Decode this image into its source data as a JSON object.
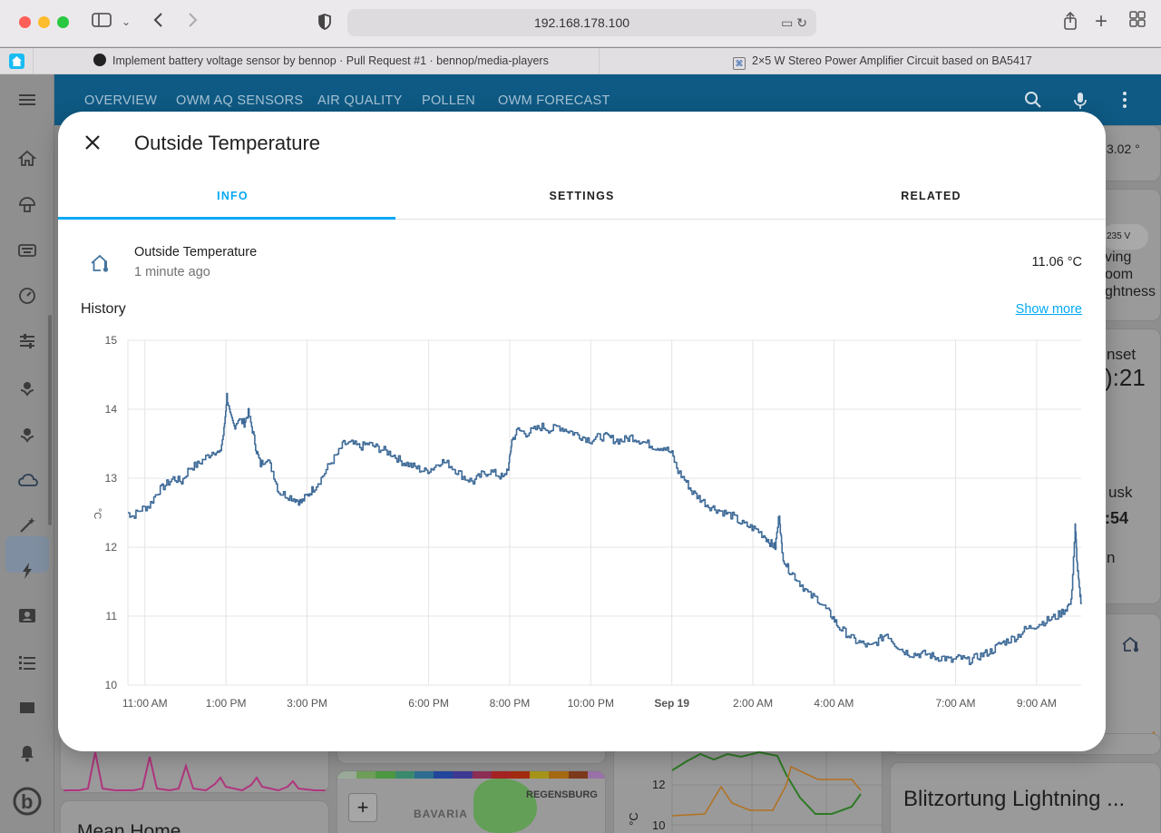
{
  "browser": {
    "url": "192.168.178.100",
    "tabs": [
      {
        "title": "Implement battery voltage sensor by bennop · Pull Request #1 · bennop/media-players",
        "icon": "github-icon"
      },
      {
        "title": "2×5 W Stereo Power Amplifier Circuit based on BA5417",
        "icon": "site-icon"
      }
    ]
  },
  "header": {
    "tabs": [
      "OVERVIEW",
      "OWM AQ SENSORS",
      "AIR QUALITY",
      "POLLEN",
      "OWM FORECAST"
    ],
    "icons": [
      "search-icon",
      "microphone-icon",
      "more-vert-icon"
    ]
  },
  "background": {
    "snippets": [
      "3.02 °",
      "235 V",
      "ving",
      "oom",
      "ghtness",
      "nset",
      "):21",
      "usk",
      ":54",
      "n",
      "BAVARIA",
      "REGENSBURG",
      "12",
      "10",
      "°C",
      "Blitzortung Lightning ...",
      "Mean Home",
      "+"
    ]
  },
  "dialog": {
    "title": "Outside Temperature",
    "tabs": [
      {
        "label": "INFO",
        "active": true
      },
      {
        "label": "SETTINGS",
        "active": false
      },
      {
        "label": "RELATED",
        "active": false
      }
    ],
    "entity": {
      "name": "Outside Temperature",
      "last_changed": "1 minute ago",
      "state": "11.06 °C"
    },
    "history_label": "History",
    "show_more": "Show more"
  },
  "chart_data": {
    "type": "line",
    "title": "",
    "ylabel": "°C",
    "xlabel": "",
    "ylim": [
      10,
      15
    ],
    "yticks": [
      10,
      11,
      12,
      13,
      14,
      15
    ],
    "xlim_hours": [
      -0.42,
      23.1
    ],
    "xticks": [
      {
        "label": "11:00 AM",
        "h": 0
      },
      {
        "label": "1:00 PM",
        "h": 2
      },
      {
        "label": "3:00 PM",
        "h": 4
      },
      {
        "label": "6:00 PM",
        "h": 7
      },
      {
        "label": "8:00 PM",
        "h": 9
      },
      {
        "label": "10:00 PM",
        "h": 11
      },
      {
        "label": "Sep 19",
        "h": 13,
        "bold": true
      },
      {
        "label": "2:00 AM",
        "h": 15
      },
      {
        "label": "4:00 AM",
        "h": 17
      },
      {
        "label": "7:00 AM",
        "h": 20
      },
      {
        "label": "9:00 AM",
        "h": 22
      }
    ],
    "series": [
      {
        "color": "#3f6b98",
        "points": [
          [
            -0.42,
            12.5
          ],
          [
            -0.3,
            12.45
          ],
          [
            -0.1,
            12.55
          ],
          [
            0.1,
            12.6
          ],
          [
            0.3,
            12.8
          ],
          [
            0.5,
            12.9
          ],
          [
            0.7,
            13.0
          ],
          [
            0.9,
            12.95
          ],
          [
            1.1,
            13.15
          ],
          [
            1.3,
            13.2
          ],
          [
            1.5,
            13.3
          ],
          [
            1.7,
            13.4
          ],
          [
            1.85,
            13.35
          ],
          [
            1.95,
            13.7
          ],
          [
            2.02,
            14.2
          ],
          [
            2.1,
            13.9
          ],
          [
            2.2,
            13.75
          ],
          [
            2.3,
            13.85
          ],
          [
            2.45,
            13.8
          ],
          [
            2.55,
            13.95
          ],
          [
            2.65,
            13.7
          ],
          [
            2.75,
            13.4
          ],
          [
            2.85,
            13.2
          ],
          [
            3.0,
            13.3
          ],
          [
            3.15,
            13.1
          ],
          [
            3.3,
            12.8
          ],
          [
            3.5,
            12.75
          ],
          [
            3.7,
            12.7
          ],
          [
            3.85,
            12.65
          ],
          [
            4.0,
            12.75
          ],
          [
            4.15,
            12.85
          ],
          [
            4.35,
            13.0
          ],
          [
            4.55,
            13.2
          ],
          [
            4.75,
            13.35
          ],
          [
            4.9,
            13.5
          ],
          [
            5.1,
            13.5
          ],
          [
            5.3,
            13.45
          ],
          [
            5.5,
            13.5
          ],
          [
            5.7,
            13.45
          ],
          [
            5.9,
            13.4
          ],
          [
            6.1,
            13.35
          ],
          [
            6.3,
            13.25
          ],
          [
            6.5,
            13.2
          ],
          [
            6.7,
            13.15
          ],
          [
            6.9,
            13.1
          ],
          [
            7.1,
            13.15
          ],
          [
            7.3,
            13.25
          ],
          [
            7.5,
            13.2
          ],
          [
            7.7,
            13.1
          ],
          [
            7.9,
            13.0
          ],
          [
            8.1,
            12.95
          ],
          [
            8.3,
            13.05
          ],
          [
            8.5,
            13.1
          ],
          [
            8.7,
            13.05
          ],
          [
            8.85,
            13.0
          ],
          [
            8.98,
            13.2
          ],
          [
            9.05,
            13.55
          ],
          [
            9.2,
            13.7
          ],
          [
            9.4,
            13.65
          ],
          [
            9.6,
            13.7
          ],
          [
            9.8,
            13.75
          ],
          [
            10.0,
            13.7
          ],
          [
            10.2,
            13.75
          ],
          [
            10.4,
            13.7
          ],
          [
            10.6,
            13.65
          ],
          [
            10.8,
            13.6
          ],
          [
            11.0,
            13.55
          ],
          [
            11.2,
            13.6
          ],
          [
            11.4,
            13.6
          ],
          [
            11.6,
            13.55
          ],
          [
            11.8,
            13.55
          ],
          [
            12.0,
            13.6
          ],
          [
            12.2,
            13.55
          ],
          [
            12.4,
            13.5
          ],
          [
            12.6,
            13.45
          ],
          [
            12.8,
            13.45
          ],
          [
            13.0,
            13.35
          ],
          [
            13.15,
            13.1
          ],
          [
            13.35,
            12.95
          ],
          [
            13.5,
            12.8
          ],
          [
            13.7,
            12.7
          ],
          [
            13.9,
            12.6
          ],
          [
            14.1,
            12.55
          ],
          [
            14.3,
            12.5
          ],
          [
            14.5,
            12.45
          ],
          [
            14.7,
            12.35
          ],
          [
            14.9,
            12.3
          ],
          [
            15.1,
            12.25
          ],
          [
            15.3,
            12.15
          ],
          [
            15.45,
            12.05
          ],
          [
            15.55,
            12.0
          ],
          [
            15.65,
            12.5
          ],
          [
            15.72,
            11.9
          ],
          [
            15.85,
            11.7
          ],
          [
            16.0,
            11.6
          ],
          [
            16.2,
            11.45
          ],
          [
            16.4,
            11.3
          ],
          [
            16.6,
            11.25
          ],
          [
            16.8,
            11.1
          ],
          [
            16.95,
            11.0
          ],
          [
            17.1,
            10.85
          ],
          [
            17.3,
            10.75
          ],
          [
            17.5,
            10.65
          ],
          [
            17.7,
            10.6
          ],
          [
            17.9,
            10.55
          ],
          [
            18.1,
            10.65
          ],
          [
            18.3,
            10.75
          ],
          [
            18.5,
            10.6
          ],
          [
            18.7,
            10.5
          ],
          [
            18.9,
            10.45
          ],
          [
            19.1,
            10.45
          ],
          [
            19.3,
            10.45
          ],
          [
            19.5,
            10.4
          ],
          [
            19.7,
            10.4
          ],
          [
            19.9,
            10.35
          ],
          [
            20.1,
            10.4
          ],
          [
            20.3,
            10.35
          ],
          [
            20.5,
            10.4
          ],
          [
            20.7,
            10.45
          ],
          [
            20.9,
            10.5
          ],
          [
            21.1,
            10.6
          ],
          [
            21.3,
            10.65
          ],
          [
            21.5,
            10.7
          ],
          [
            21.7,
            10.8
          ],
          [
            21.9,
            10.85
          ],
          [
            22.1,
            10.9
          ],
          [
            22.3,
            10.95
          ],
          [
            22.5,
            11.0
          ],
          [
            22.7,
            11.1
          ],
          [
            22.85,
            11.2
          ],
          [
            22.95,
            12.3
          ],
          [
            23.0,
            11.75
          ],
          [
            23.05,
            11.4
          ],
          [
            23.1,
            11.2
          ]
        ]
      }
    ]
  }
}
